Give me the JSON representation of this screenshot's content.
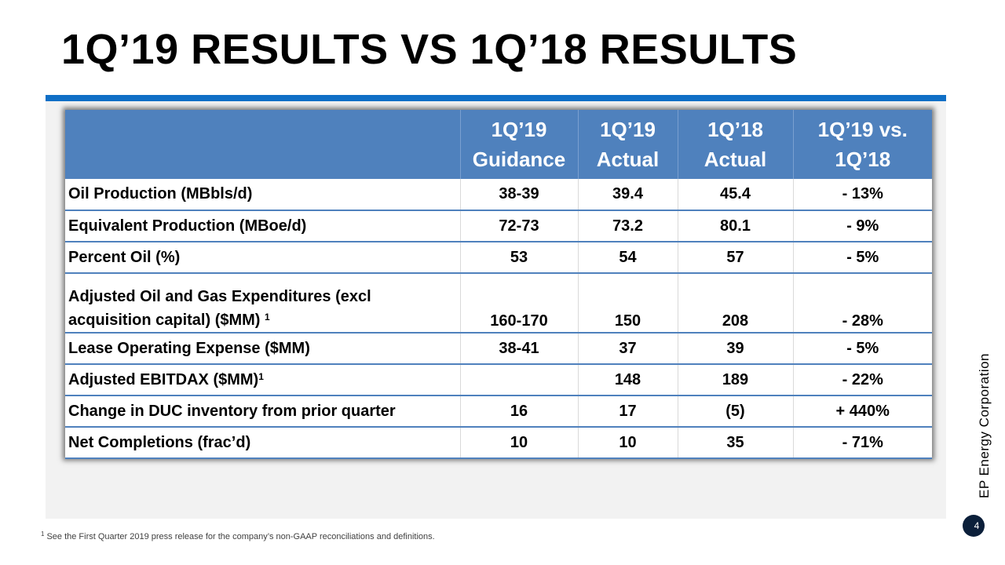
{
  "title": "1Q’19 RESULTS VS 1Q’18 RESULTS",
  "table": {
    "headers": [
      {
        "line1": "",
        "line2": ""
      },
      {
        "line1": "1Q’19",
        "line2": "Guidance"
      },
      {
        "line1": "1Q’19",
        "line2": "Actual"
      },
      {
        "line1": "1Q’18",
        "line2": "Actual"
      },
      {
        "line1": "1Q’19 vs.",
        "line2": "1Q’18"
      }
    ],
    "rows": [
      {
        "label": "Oil Production (MBbls/d)",
        "guidance": "38-39",
        "actual_1q19": "39.4",
        "actual_1q18": "45.4",
        "change": "- 13%"
      },
      {
        "label": "Equivalent Production (MBoe/d)",
        "guidance": "72-73",
        "actual_1q19": "73.2",
        "actual_1q18": "80.1",
        "change": "- 9%"
      },
      {
        "label": "Percent Oil (%)",
        "guidance": "53",
        "actual_1q19": "54",
        "actual_1q18": "57",
        "change": "- 5%"
      },
      {
        "label_line1": "Adjusted Oil and Gas Expenditures (excl",
        "label_line2": "acquisition capital) ($MM)",
        "footnote_mark": "1",
        "guidance": "160-170",
        "actual_1q19": "150",
        "actual_1q18": "208",
        "change": "- 28%"
      },
      {
        "label": "Lease Operating Expense ($MM)",
        "guidance": "38-41",
        "actual_1q19": "37",
        "actual_1q18": "39",
        "change": "- 5%"
      },
      {
        "label": "Adjusted EBITDAX ($MM)",
        "footnote_mark": "1",
        "guidance": "",
        "actual_1q19": "148",
        "actual_1q18": "189",
        "change": "- 22%"
      },
      {
        "label": "Change in DUC inventory from prior quarter",
        "guidance": "16",
        "actual_1q19": "17",
        "actual_1q18": "(5)",
        "change": "+ 440%"
      },
      {
        "label": "Net Completions (frac’d)",
        "guidance": "10",
        "actual_1q19": "10",
        "actual_1q18": "35",
        "change": "- 71%"
      }
    ]
  },
  "sidebar_company": "EP Energy Corporation",
  "page_number": "4",
  "footnote": {
    "mark": "1",
    "text": "See the First Quarter 2019 press release for the company’s non-GAAP reconciliations and definitions."
  },
  "colors": {
    "header_blue": "#4f81bd",
    "rule_blue": "#0f6fc6",
    "panel_gray": "#f2f2f2"
  }
}
